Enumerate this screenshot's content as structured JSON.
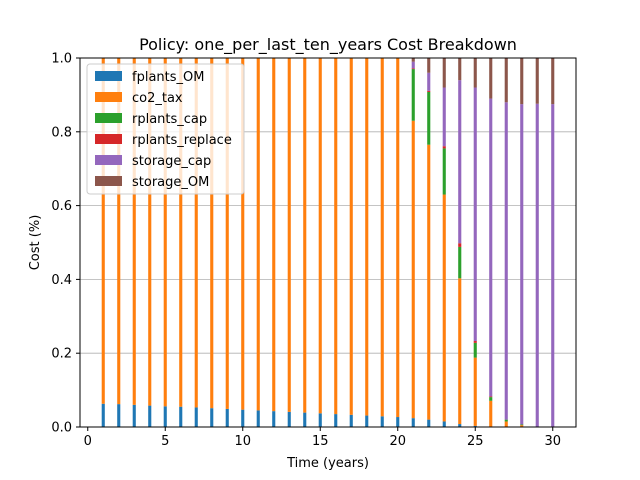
{
  "chart_data": {
    "type": "bar",
    "stacked": true,
    "normalized": true,
    "title": "Policy: one_per_last_ten_years Cost Breakdown",
    "xlabel": "Time (years)",
    "ylabel": "Cost (%)",
    "xlim": [
      -0.5,
      31.5
    ],
    "ylim": [
      0,
      1.0
    ],
    "xticks": [
      0,
      5,
      10,
      15,
      20,
      25,
      30
    ],
    "yticks": [
      0.0,
      0.2,
      0.4,
      0.6,
      0.8,
      1.0
    ],
    "xtick_labels": [
      "0",
      "5",
      "10",
      "15",
      "20",
      "25",
      "30"
    ],
    "ytick_labels": [
      "0.0",
      "0.2",
      "0.4",
      "0.6",
      "0.8",
      "1.0"
    ],
    "grid": "y",
    "legend_position": "upper-left",
    "x": [
      1,
      2,
      3,
      4,
      5,
      6,
      7,
      8,
      9,
      10,
      11,
      12,
      13,
      14,
      15,
      16,
      17,
      18,
      19,
      20,
      21,
      22,
      23,
      24,
      25,
      26,
      27,
      28,
      29,
      30
    ],
    "series": [
      {
        "name": "fplants_OM",
        "color": "#1f77b4",
        "values": [
          0.063,
          0.062,
          0.06,
          0.058,
          0.056,
          0.055,
          0.053,
          0.051,
          0.049,
          0.047,
          0.045,
          0.043,
          0.041,
          0.039,
          0.037,
          0.035,
          0.033,
          0.031,
          0.029,
          0.027,
          0.024,
          0.02,
          0.015,
          0.008,
          0.003,
          0.001,
          0,
          0,
          0,
          0
        ]
      },
      {
        "name": "co2_tax",
        "color": "#ff7f0e",
        "values": [
          0.937,
          0.938,
          0.94,
          0.942,
          0.944,
          0.945,
          0.947,
          0.949,
          0.951,
          0.953,
          0.955,
          0.957,
          0.959,
          0.961,
          0.963,
          0.965,
          0.967,
          0.969,
          0.971,
          0.973,
          0.806,
          0.745,
          0.615,
          0.395,
          0.185,
          0.07,
          0.015,
          0.005,
          0,
          0
        ]
      },
      {
        "name": "rplants_cap",
        "color": "#2ca02c",
        "values": [
          0,
          0,
          0,
          0,
          0,
          0,
          0,
          0,
          0,
          0,
          0,
          0,
          0,
          0,
          0,
          0,
          0,
          0,
          0,
          0,
          0.14,
          0.143,
          0.125,
          0.085,
          0.04,
          0.01,
          0.005,
          0.002,
          0,
          0
        ]
      },
      {
        "name": "rplants_replace",
        "color": "#d62728",
        "values": [
          0,
          0,
          0,
          0,
          0,
          0,
          0,
          0,
          0,
          0,
          0,
          0,
          0,
          0,
          0,
          0,
          0,
          0,
          0,
          0,
          0.002,
          0.003,
          0.006,
          0.01,
          0.005,
          0.002,
          0,
          0,
          0,
          0
        ]
      },
      {
        "name": "storage_cap",
        "color": "#9467bd",
        "values": [
          0,
          0,
          0,
          0,
          0,
          0,
          0,
          0,
          0,
          0,
          0,
          0,
          0,
          0,
          0,
          0,
          0,
          0,
          0,
          0,
          0.018,
          0.049,
          0.159,
          0.442,
          0.687,
          0.807,
          0.86,
          0.868,
          0.876,
          0.875
        ]
      },
      {
        "name": "storage_OM",
        "color": "#8c564b",
        "values": [
          0,
          0,
          0,
          0,
          0,
          0,
          0,
          0,
          0,
          0,
          0,
          0,
          0,
          0,
          0,
          0,
          0,
          0,
          0,
          0,
          0.01,
          0.04,
          0.08,
          0.06,
          0.08,
          0.11,
          0.12,
          0.125,
          0.124,
          0.125
        ]
      }
    ]
  }
}
